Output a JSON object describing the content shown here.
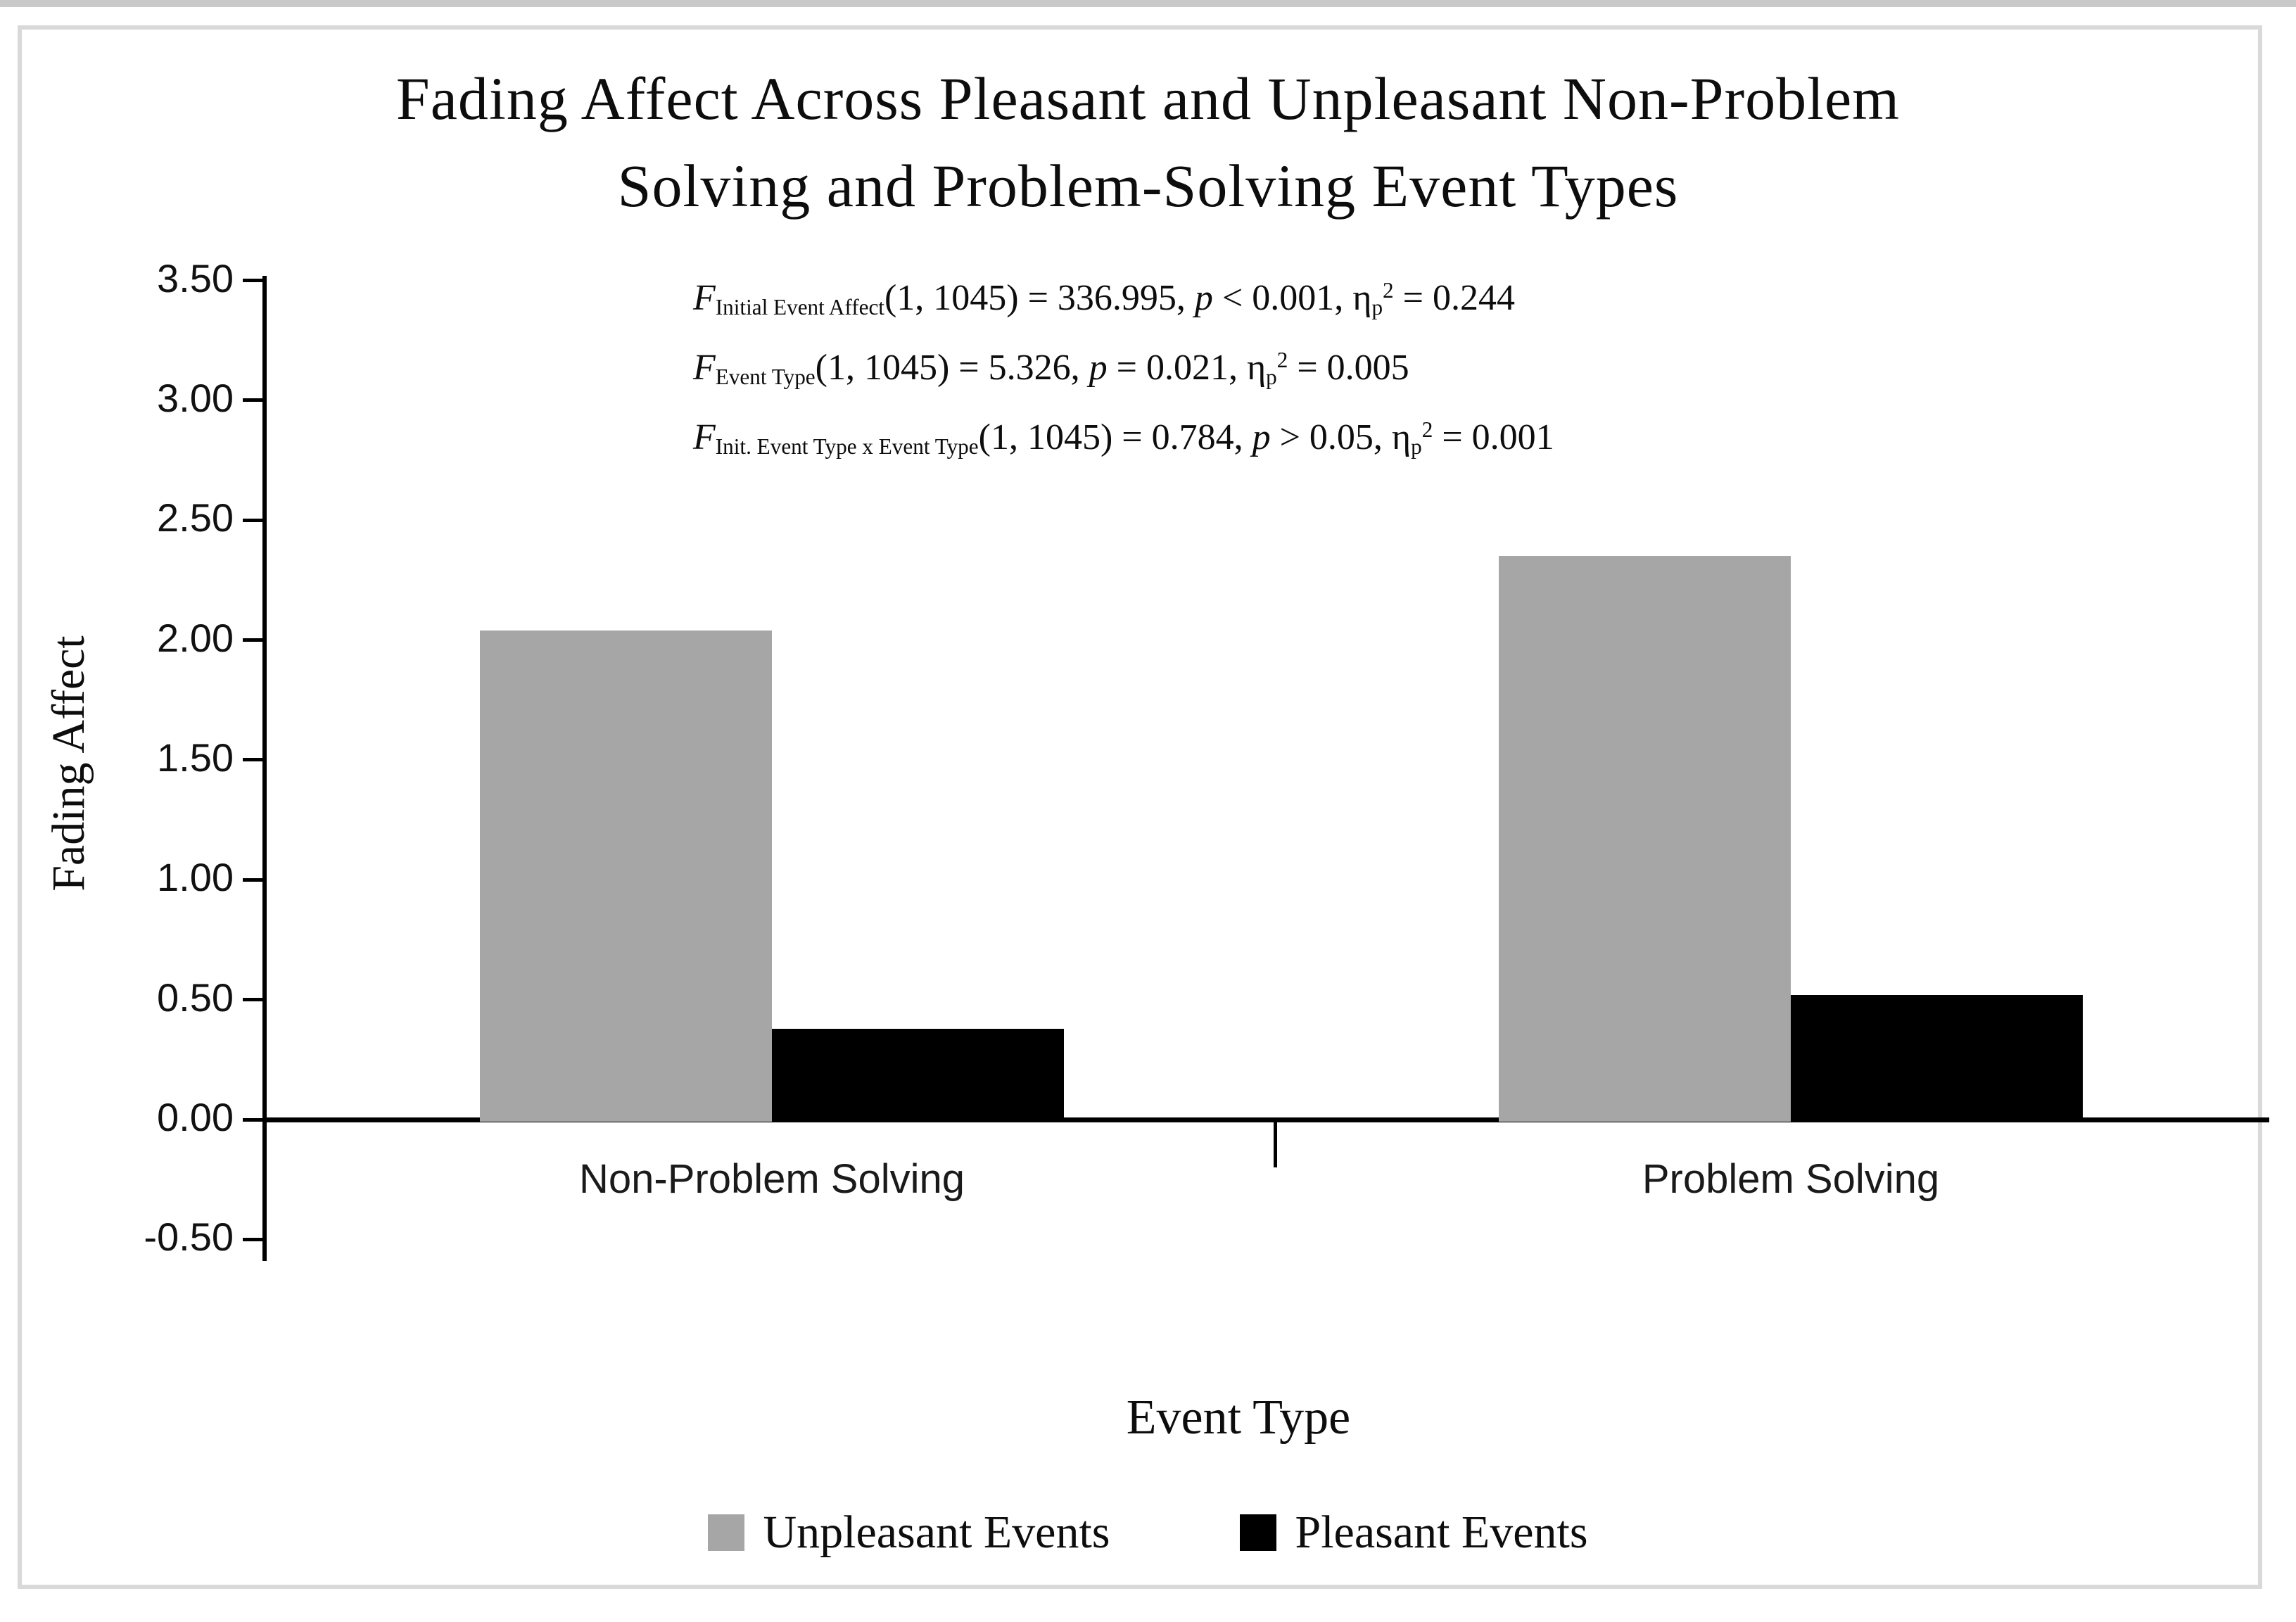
{
  "title": {
    "line1": "Fading Affect Across Pleasant and Unpleasant Non-Problem",
    "line2": "Solving and Problem-Solving Event Types"
  },
  "stats_annotations": [
    {
      "plain": "F Initial Event Affect (1, 1045) = 336.995, p < 0.001, ηp2 = 0.244",
      "segments": [
        {
          "t": "F",
          "s": "i"
        },
        {
          "t": "Initial Event Affect",
          "s": "sub"
        },
        {
          "t": "(1, 1045) = 336.995, ",
          "s": "n"
        },
        {
          "t": "p",
          "s": "i"
        },
        {
          "t": " < 0.001, η",
          "s": "n"
        },
        {
          "t": "p",
          "s": "sub"
        },
        {
          "t": "2",
          "s": "sup"
        },
        {
          "t": " = 0.244",
          "s": "n"
        }
      ]
    },
    {
      "plain": "F Event Type (1, 1045) = 5.326, p = 0.021, ηp2 = 0.005",
      "segments": [
        {
          "t": "F",
          "s": "i"
        },
        {
          "t": "Event Type",
          "s": "sub"
        },
        {
          "t": "(1, 1045) = 5.326, ",
          "s": "n"
        },
        {
          "t": "p",
          "s": "i"
        },
        {
          "t": " = 0.021, η",
          "s": "n"
        },
        {
          "t": "p",
          "s": "sub"
        },
        {
          "t": "2",
          "s": "sup"
        },
        {
          "t": " = 0.005",
          "s": "n"
        }
      ]
    },
    {
      "plain": "F Init. Event Type x Event Type (1, 1045) = 0.784, p > 0.05, ηp2 = 0.001",
      "segments": [
        {
          "t": "F",
          "s": "i"
        },
        {
          "t": "Init. Event Type x Event Type",
          "s": "sub"
        },
        {
          "t": "(1, 1045) =  0.784, ",
          "s": "n"
        },
        {
          "t": "p",
          "s": "i"
        },
        {
          "t": " > 0.05, η",
          "s": "n"
        },
        {
          "t": "p",
          "s": "sub"
        },
        {
          "t": "2",
          "s": "sup"
        },
        {
          "t": " = 0.001",
          "s": "n"
        }
      ]
    }
  ],
  "y_axis": {
    "title": "Fading Affect"
  },
  "x_axis": {
    "title": "Event Type"
  },
  "legend": [
    {
      "label": "Unpleasant Events",
      "color": "#a6a6a6"
    },
    {
      "label": "Pleasant Events",
      "color": "#000000"
    }
  ],
  "colors": {
    "unpleasant_gray": "#a6a6a6",
    "pleasant_black": "#000000",
    "frame_border": "#d9d9d9"
  },
  "chart_data": {
    "type": "bar",
    "title": "Fading Affect Across Pleasant and Unpleasant Non-Problem Solving and Problem-Solving Event Types",
    "categories": [
      "Non-Problem Solving",
      "Problem Solving"
    ],
    "series": [
      {
        "name": "Unpleasant Events",
        "color": "#a6a6a6",
        "values": [
          2.04,
          2.35
        ]
      },
      {
        "name": "Pleasant Events",
        "color": "#000000",
        "values": [
          0.38,
          0.52
        ]
      }
    ],
    "xlabel": "Event Type",
    "ylabel": "Fading Affect",
    "ylim": [
      -0.5,
      3.5
    ],
    "ytick_step": 0.5,
    "y_ticks": [
      {
        "label": "3.50",
        "value": 3.5
      },
      {
        "label": "3.00",
        "value": 3.0
      },
      {
        "label": "2.50",
        "value": 2.5
      },
      {
        "label": "2.00",
        "value": 2.0
      },
      {
        "label": "1.50",
        "value": 1.5
      },
      {
        "label": "1.00",
        "value": 1.0
      },
      {
        "label": "0.50",
        "value": 0.5
      },
      {
        "label": "0.00",
        "value": 0.0
      },
      {
        "label": "-0.50",
        "value": -0.5
      }
    ],
    "grid": false,
    "legend_position": "bottom",
    "stats_text": [
      "F Initial Event Affect (1, 1045) = 336.995, p < 0.001, ηp2 = 0.244",
      "F Event Type (1, 1045) = 5.326, p = 0.021, ηp2 = 0.005",
      "F Init. Event Type x Event Type (1, 1045) = 0.784, p > 0.05, ηp2 = 0.001"
    ]
  }
}
